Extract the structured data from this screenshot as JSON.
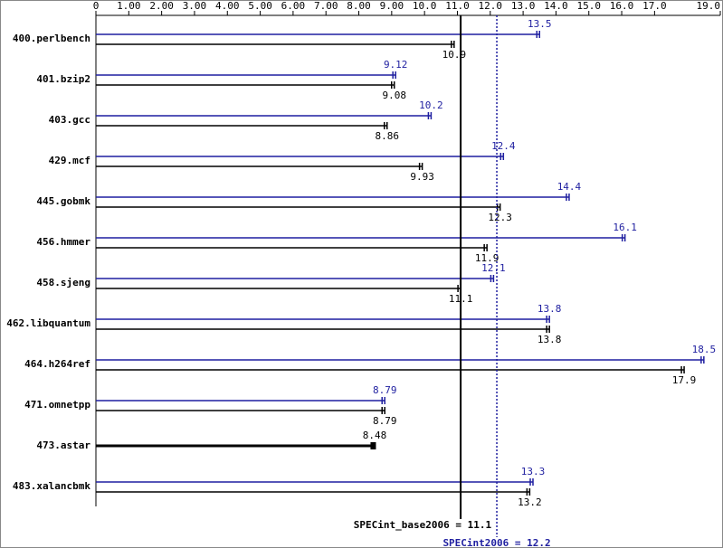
{
  "chart_data": {
    "type": "bar",
    "orientation": "horizontal",
    "categories": [
      "400.perlbench",
      "401.bzip2",
      "403.gcc",
      "429.mcf",
      "445.gobmk",
      "456.hmmer",
      "458.sjeng",
      "462.libquantum",
      "464.h264ref",
      "471.omnetpp",
      "473.astar",
      "483.xalancbmk"
    ],
    "series": [
      {
        "color": "#1f1fa0",
        "values": [
          13.5,
          9.12,
          10.2,
          12.4,
          14.4,
          16.1,
          12.1,
          13.8,
          18.5,
          8.79,
          null,
          13.3
        ]
      },
      {
        "color": "#000000",
        "values": [
          10.9,
          9.08,
          8.86,
          9.93,
          12.3,
          11.9,
          11.1,
          13.8,
          17.9,
          8.79,
          8.48,
          13.2
        ]
      }
    ],
    "xlim": [
      0,
      19
    ],
    "xticks": [
      0,
      {
        "value": 1,
        "label": "1.00"
      },
      {
        "value": 2,
        "label": "2.00"
      },
      {
        "value": 3,
        "label": "3.00"
      },
      {
        "value": 4,
        "label": "4.00"
      },
      {
        "value": 5,
        "label": "5.00"
      },
      {
        "value": 6,
        "label": "6.00"
      },
      {
        "value": 7,
        "label": "7.00"
      },
      {
        "value": 8,
        "label": "8.00"
      },
      {
        "value": 9,
        "label": "9.00"
      },
      {
        "value": 10,
        "label": "10.0"
      },
      {
        "value": 11,
        "label": "11.0"
      },
      {
        "value": 12,
        "label": "12.0"
      },
      {
        "value": 13,
        "label": "13.0"
      },
      {
        "value": 14,
        "label": "14.0"
      },
      {
        "value": 15,
        "label": "15.0"
      },
      {
        "value": 16,
        "label": "16.0"
      },
      {
        "value": 17,
        "label": "17.0"
      },
      {
        "value": 19,
        "label": "19.0"
      }
    ],
    "reference_lines": [
      {
        "label": "SPECint_base2006 = 11.1",
        "value": 11.1,
        "color": "#000000",
        "style": "solid"
      },
      {
        "label": "SPECint2006 = 12.2",
        "value": 12.2,
        "color": "#1f1fa0",
        "style": "dotted"
      }
    ]
  }
}
